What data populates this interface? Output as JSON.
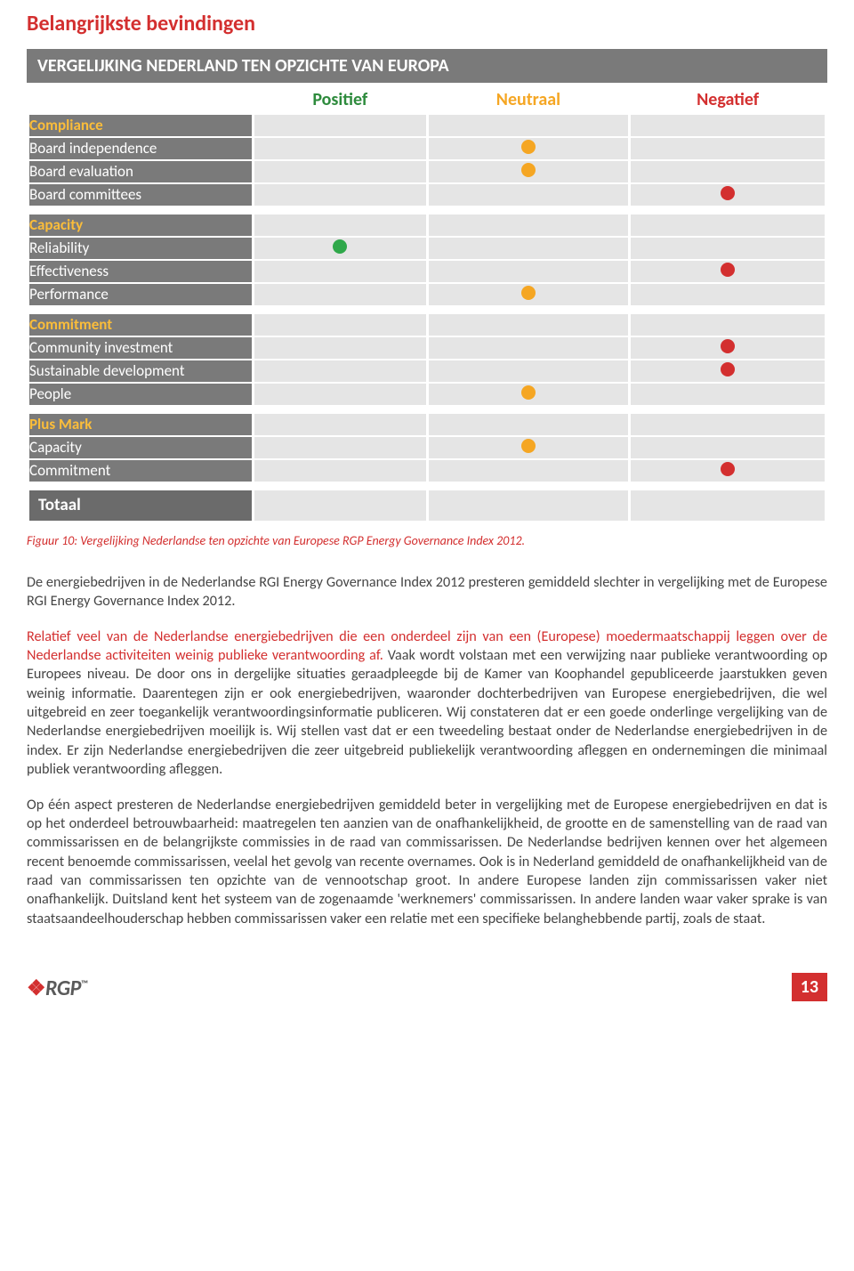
{
  "title": "Belangrijkste bevindingen",
  "table_title": "VERGELIJKING NEDERLAND TEN OPZICHTE VAN EUROPA",
  "columns": {
    "positief": {
      "label": "Positief",
      "color": "#2e8b3d"
    },
    "neutraal": {
      "label": "Neutraal",
      "color": "#f5a623"
    },
    "negatief": {
      "label": "Negatief",
      "color": "#d32f2f"
    }
  },
  "dot_colors": {
    "pos": "#2fa84a",
    "neu": "#f5a623",
    "neg": "#d32f2f"
  },
  "row_bg": "#7a7a7a",
  "cell_bg": "#e5e5e5",
  "groups": [
    {
      "name": "Compliance",
      "rows": [
        {
          "label": "Board independence",
          "value": "neu"
        },
        {
          "label": "Board evaluation",
          "value": "neu"
        },
        {
          "label": "Board committees",
          "value": "neg"
        }
      ]
    },
    {
      "name": "Capacity",
      "rows": [
        {
          "label": "Reliability",
          "value": "pos"
        },
        {
          "label": "Effectiveness",
          "value": "neg"
        },
        {
          "label": "Performance",
          "value": "neu"
        }
      ]
    },
    {
      "name": "Commitment",
      "rows": [
        {
          "label": "Community investment",
          "value": "neg"
        },
        {
          "label": "Sustainable development",
          "value": "neg"
        },
        {
          "label": "People",
          "value": "neu"
        }
      ]
    },
    {
      "name": "Plus Mark",
      "rows": [
        {
          "label": "Capacity",
          "value": "neu"
        },
        {
          "label": "Commitment",
          "value": "neg"
        }
      ]
    }
  ],
  "totaal_label": "Totaal",
  "caption": "Figuur 10: Vergelijking Nederlandse ten opzichte van Europese RGP Energy Governance Index 2012.",
  "paragraphs": {
    "p1": "De energiebedrijven in de Nederlandse RGI Energy Governance Index 2012 presteren gemiddeld slechter in vergelijking met de Europese RGI Energy Governance Index 2012.",
    "p2_lead": "Relatief veel van de Nederlandse energiebedrijven die een onderdeel zijn van een (Europese) moedermaatschappij leggen over de Nederlandse activiteiten weinig publieke verantwoording af.",
    "p2_rest": " Vaak wordt volstaan met een verwijzing naar publieke verantwoording op Europees niveau. De door ons in dergelijke situaties geraadpleegde bij de Kamer van Koophandel gepubliceerde jaarstukken geven weinig informatie. Daarentegen zijn er ook energiebedrijven, waaronder dochterbedrijven van Europese energiebedrijven, die wel uitgebreid en zeer toegankelijk verantwoordingsinformatie publiceren. Wij constateren dat er een goede onderlinge vergelijking van de Nederlandse energiebedrijven moeilijk is. Wij stellen vast dat er een tweedeling bestaat onder de Nederlandse energiebedrijven in de index. Er zijn Nederlandse energiebedrijven die zeer uitgebreid publiekelijk verantwoording afleggen en ondernemingen die minimaal publiek verantwoording afleggen.",
    "p3": "Op één aspect presteren de Nederlandse energiebedrijven gemiddeld beter in vergelijking met de Europese energiebedrijven en dat is op het onderdeel betrouwbaarheid: maatregelen ten aanzien van de onafhankelijkheid, de grootte en de samenstelling van de raad van commissarissen en de belangrijkste commissies in de raad van commissarissen. De Nederlandse bedrijven kennen over het algemeen recent benoemde commissarissen, veelal het gevolg van recente overnames. Ook is in Nederland gemiddeld de onafhankelijkheid van de raad van commissarissen ten opzichte van de vennootschap groot. In andere Europese landen zijn commissarissen vaker niet onafhankelijk. Duitsland kent het systeem van de zogenaamde 'werknemers' commissarissen. In andere landen waar vaker sprake is van staatsaandeelhouderschap hebben commissarissen vaker een relatie met een specifieke belanghebbende partij, zoals de staat."
  },
  "logo": {
    "flame": "❖",
    "text": "RGP",
    "tm": "™"
  },
  "page_number": "13"
}
